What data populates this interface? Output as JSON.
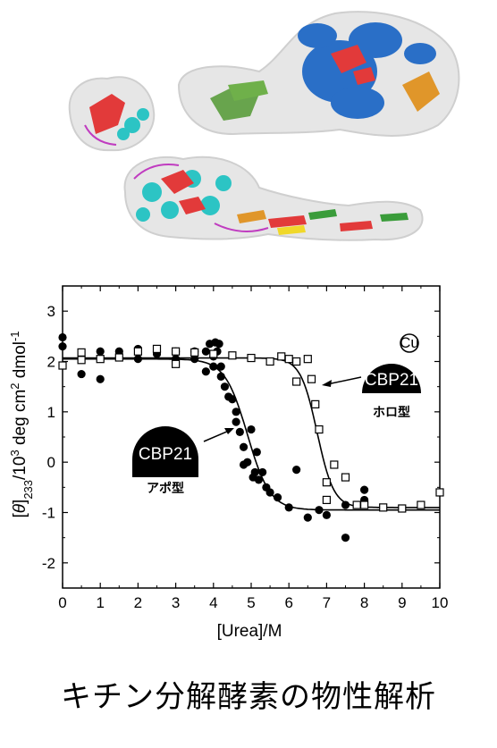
{
  "page": {
    "title": "キチン分解酵素の物性解析"
  },
  "annotations": {
    "apo_badge": "CBP21",
    "apo_label": "アポ型",
    "holo_badge": "CBP21",
    "holo_label": "ホロ型",
    "cu_label": "Cu"
  },
  "chart_data": {
    "type": "scatter",
    "xlabel": "[Urea]/M",
    "ylabel": "[θ]233/10³ deg cm² dmol⁻¹",
    "xlim": [
      0,
      10
    ],
    "ylim": [
      -2.5,
      3.5
    ],
    "xticks": [
      0,
      1,
      2,
      3,
      4,
      5,
      6,
      7,
      8,
      9,
      10
    ],
    "yticks": [
      -2,
      -1,
      0,
      1,
      2,
      3
    ],
    "ytick_labels": [
      "-2",
      "-1",
      "0",
      "1",
      "2",
      "3"
    ],
    "series": [
      {
        "marker": "filled-circle",
        "points": [
          [
            0,
            2.48
          ],
          [
            0,
            2.3
          ],
          [
            0.5,
            2.05
          ],
          [
            0.5,
            1.75
          ],
          [
            1,
            2.2
          ],
          [
            1,
            1.65
          ],
          [
            1.5,
            2.2
          ],
          [
            2,
            2.25
          ],
          [
            2,
            2.05
          ],
          [
            2.5,
            2.2
          ],
          [
            2.5,
            2.15
          ],
          [
            3,
            2.2
          ],
          [
            3,
            2.05
          ],
          [
            3.5,
            2.2
          ],
          [
            3.5,
            2.05
          ],
          [
            3.8,
            2.2
          ],
          [
            3.8,
            1.8
          ],
          [
            3.9,
            2.35
          ],
          [
            4,
            2.1
          ],
          [
            4,
            1.9
          ],
          [
            4.05,
            2.38
          ],
          [
            4.1,
            2.2
          ],
          [
            4.15,
            2.35
          ],
          [
            4.2,
            1.9
          ],
          [
            4.2,
            1.7
          ],
          [
            4.3,
            1.5
          ],
          [
            4.4,
            1.3
          ],
          [
            4.5,
            1.25
          ],
          [
            4.6,
            1.0
          ],
          [
            4.6,
            0.8
          ],
          [
            4.7,
            0.6
          ],
          [
            4.8,
            0.3
          ],
          [
            4.9,
            0.0
          ],
          [
            4.8,
            -0.05
          ],
          [
            5.0,
            0.65
          ],
          [
            5.05,
            -0.3
          ],
          [
            5.1,
            -0.2
          ],
          [
            5.15,
            0.2
          ],
          [
            5.2,
            -0.35
          ],
          [
            5.3,
            -0.2
          ],
          [
            5.4,
            -0.5
          ],
          [
            5.5,
            -0.6
          ],
          [
            5.7,
            -0.7
          ],
          [
            6.0,
            -0.9
          ],
          [
            6.2,
            -0.15
          ],
          [
            6.5,
            -1.1
          ],
          [
            6.8,
            -0.95
          ],
          [
            7.0,
            -1.05
          ],
          [
            7.5,
            -1.5
          ],
          [
            7.5,
            -0.85
          ],
          [
            8.0,
            -0.75
          ],
          [
            8.0,
            -0.55
          ]
        ]
      },
      {
        "marker": "open-square",
        "points": [
          [
            0,
            1.92
          ],
          [
            0.5,
            2.18
          ],
          [
            0.5,
            2.03
          ],
          [
            1,
            2.05
          ],
          [
            1.5,
            2.08
          ],
          [
            2,
            2.2
          ],
          [
            2.5,
            2.25
          ],
          [
            3,
            2.2
          ],
          [
            3,
            1.95
          ],
          [
            3.5,
            2.18
          ],
          [
            4,
            2.15
          ],
          [
            4.5,
            2.12
          ],
          [
            5,
            2.07
          ],
          [
            5.5,
            2.0
          ],
          [
            5.8,
            2.1
          ],
          [
            6.0,
            2.05
          ],
          [
            6.2,
            2.0
          ],
          [
            6.5,
            2.05
          ],
          [
            6.2,
            1.6
          ],
          [
            6.6,
            1.65
          ],
          [
            6.7,
            1.15
          ],
          [
            6.8,
            0.65
          ],
          [
            7.0,
            -0.4
          ],
          [
            7.0,
            -0.75
          ],
          [
            7.2,
            -0.05
          ],
          [
            7.5,
            -0.3
          ],
          [
            7.8,
            -0.85
          ],
          [
            8.0,
            -0.85
          ],
          [
            8.5,
            -0.9
          ],
          [
            9.0,
            -0.92
          ],
          [
            9.5,
            -0.85
          ],
          [
            10.0,
            -0.6
          ]
        ]
      }
    ],
    "fits": [
      {
        "series": 0,
        "upper": 2.05,
        "lower": -0.95,
        "midpoint": 4.9,
        "width": 0.3
      },
      {
        "series": 1,
        "upper": 2.07,
        "lower": -0.9,
        "midpoint": 6.75,
        "width": 0.22
      }
    ],
    "grid": false
  }
}
